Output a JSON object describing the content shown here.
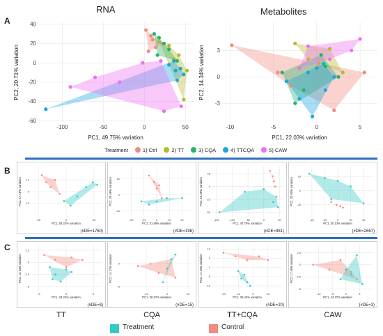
{
  "panel_letters": {
    "a": "A",
    "b": "B",
    "c": "C"
  },
  "titles": {
    "rna": "RNA",
    "metabolites": "Metabolites"
  },
  "legend": {
    "title": "Treatment",
    "items": [
      {
        "label": "1) Ctrl",
        "color": "#f28b82"
      },
      {
        "label": "2) TT",
        "color": "#b5b92b"
      },
      {
        "label": "3) CQA",
        "color": "#27b36b"
      },
      {
        "label": "4) TTCQA",
        "color": "#1ba6e0"
      },
      {
        "label": "5) CAW",
        "color": "#ef6ff1"
      }
    ]
  },
  "bottom_labels": {
    "tt": "TT",
    "cqa": "CQA",
    "ttcqa": "TT+CQA",
    "caw": "CAW"
  },
  "bottom_legend": {
    "treatment": "Treatment",
    "control": "Control",
    "treatment_color": "#34c9c4",
    "control_color": "#f28b82"
  },
  "chart_data": [
    {
      "type": "scatter",
      "title": "RNA",
      "xlabel": "PC1, 49.75% variation",
      "ylabel": "PC2, 20.71% variation",
      "xlim": [
        -130,
        60
      ],
      "ylim": [
        -62,
        42
      ],
      "xticks": [
        -100,
        -50,
        0,
        50
      ],
      "yticks": [
        -60,
        -40,
        -20,
        0,
        20,
        40
      ],
      "series": [
        {
          "name": "1) Ctrl",
          "color": "#f28b82",
          "x": [
            2,
            8,
            14,
            5,
            22,
            10
          ],
          "y": [
            34,
            28,
            16,
            12,
            20,
            24
          ]
        },
        {
          "name": "2) TT",
          "color": "#b5b92b",
          "x": [
            18,
            30,
            42,
            52,
            48,
            36
          ],
          "y": [
            22,
            18,
            8,
            -8,
            -38,
            4
          ]
        },
        {
          "name": "3) CQA",
          "color": "#27b36b",
          "x": [
            12,
            18,
            24,
            30,
            16,
            40
          ],
          "y": [
            30,
            26,
            20,
            14,
            8,
            2
          ]
        },
        {
          "name": "4) TTCQA",
          "color": "#1ba6e0",
          "x": [
            -120,
            30,
            38,
            40,
            44,
            48,
            36
          ],
          "y": [
            -48,
            -2,
            -8,
            -18,
            -6,
            -12,
            2
          ]
        },
        {
          "name": "5) CAW",
          "color": "#ef6ff1",
          "x": [
            -90,
            -60,
            -30,
            -2,
            20,
            24,
            45
          ],
          "y": [
            -25,
            -15,
            -20,
            0,
            2,
            -50,
            -45
          ]
        }
      ]
    },
    {
      "type": "scatter",
      "title": "Metabolites",
      "xlabel": "PC1, 22.03% variation",
      "ylabel": "PC2, 14.34% variation",
      "xlim": [
        -11,
        7
      ],
      "ylim": [
        -5.2,
        6.2
      ],
      "xticks": [
        -10,
        -5,
        0,
        5
      ],
      "yticks": [
        -3,
        0,
        3
      ],
      "series": [
        {
          "name": "1) Ctrl",
          "color": "#f28b82",
          "x": [
            -9.8,
            -4.5,
            0.2,
            2.0,
            5.5,
            -3.0
          ],
          "y": [
            3.6,
            0.5,
            1.5,
            -3.8,
            0.5,
            -1.0
          ]
        },
        {
          "name": "2) TT",
          "color": "#b5b92b",
          "x": [
            -2.5,
            1.5,
            3.0,
            -1.0
          ],
          "y": [
            3.8,
            3.2,
            0.5,
            2.0
          ]
        },
        {
          "name": "3) CQA",
          "color": "#27b36b",
          "x": [
            -4.0,
            -1.5,
            0.5,
            2.5,
            -2.5,
            1.0
          ],
          "y": [
            0.5,
            -1.5,
            2.5,
            0.0,
            -3.0,
            1.2
          ]
        },
        {
          "name": "4) TTCQA",
          "color": "#1ba6e0",
          "x": [
            -3.5,
            -2.0,
            -1.0,
            0.0,
            1.0,
            2.0,
            -0.5,
            0.8
          ],
          "y": [
            -0.5,
            -2.5,
            0.5,
            1.0,
            -1.5,
            0.0,
            -4.5,
            1.5
          ]
        },
        {
          "name": "5) CAW",
          "color": "#ef6ff1",
          "x": [
            -2.0,
            1.5,
            4.0,
            5.0,
            -1.0
          ],
          "y": [
            1.0,
            2.0,
            3.0,
            4.3,
            3.5
          ]
        }
      ]
    },
    {
      "type": "scatter",
      "title": "",
      "xlabel": "PC1, 53.22% variation",
      "ylabel": "PC2, 17.18% variation",
      "xlim": [
        -32,
        32
      ],
      "ylim": [
        -22,
        22
      ],
      "xticks": [
        -25,
        0,
        25
      ],
      "yticks": [
        -10,
        0,
        10
      ],
      "annotation": "(#DE=1760)",
      "series": [
        {
          "color": "#f28b82",
          "x": [
            -22,
            -18,
            -14,
            -10,
            -6
          ],
          "y": [
            14,
            8,
            4,
            10,
            -2
          ]
        },
        {
          "color": "#34c9c4",
          "x": [
            4,
            10,
            18,
            24,
            28,
            -2
          ],
          "y": [
            -12,
            -4,
            4,
            8,
            6,
            -8
          ]
        }
      ]
    },
    {
      "type": "scatter",
      "title": "",
      "xlabel": "PC1, 31.59% variation",
      "ylabel": "PC2, 25.49% variation",
      "xlim": [
        -28,
        28
      ],
      "ylim": [
        -14,
        18
      ],
      "xticks": [
        -20,
        -10,
        0,
        10,
        20
      ],
      "yticks": [
        -10,
        0,
        10
      ],
      "annotation": "(#DE=198)",
      "series": [
        {
          "color": "#f28b82",
          "x": [
            -6,
            -2,
            2,
            4,
            0
          ],
          "y": [
            12,
            8,
            6,
            -2,
            4
          ]
        },
        {
          "color": "#34c9c4",
          "x": [
            -12,
            -6,
            0,
            8,
            20
          ],
          "y": [
            -4,
            -6,
            -4,
            -2,
            -2
          ]
        }
      ]
    },
    {
      "type": "scatter",
      "title": "",
      "xlabel": "PC1, 40.76% variation",
      "ylabel": "PC2, 18.28% variation",
      "xlim": [
        -165,
        60
      ],
      "ylim": [
        -60,
        40
      ],
      "xticks": [
        -150,
        -100,
        -50,
        0,
        50
      ],
      "yticks": [
        -50,
        -25,
        0,
        25
      ],
      "annotation": "(#DE=981)",
      "series": [
        {
          "color": "#f28b82",
          "x": [
            20,
            28,
            32,
            36
          ],
          "y": [
            30,
            20,
            10,
            0
          ]
        },
        {
          "color": "#34c9c4",
          "x": [
            -140,
            -60,
            0,
            30,
            40,
            45
          ],
          "y": [
            -50,
            -10,
            -5,
            -30,
            -20,
            -40
          ]
        }
      ]
    },
    {
      "type": "scatter",
      "title": "",
      "xlabel": "PC1, 30.13% variation",
      "ylabel": "PC2, 20.93% variation",
      "xlim": [
        -55,
        55
      ],
      "ylim": [
        -38,
        35
      ],
      "xticks": [
        -40,
        -20,
        0,
        20,
        40
      ],
      "yticks": [
        -20,
        0,
        20
      ],
      "annotation": "(#DE=2667)",
      "series": [
        {
          "color": "#f28b82",
          "x": [
            -10,
            -2,
            4,
            8
          ],
          "y": [
            -16,
            -20,
            -22,
            -24
          ]
        },
        {
          "color": "#34c9c4",
          "x": [
            -44,
            -20,
            0,
            20,
            40,
            -10
          ],
          "y": [
            24,
            18,
            14,
            6,
            -18,
            -12
          ]
        }
      ]
    },
    {
      "type": "scatter",
      "title": "",
      "xlabel": "PC1, 34.22% variation",
      "ylabel": "PC2, 15.13% variation",
      "xlim": [
        -6.5,
        6.5
      ],
      "ylim": [
        -6,
        3.5
      ],
      "xticks": [
        -5,
        0,
        5
      ],
      "yticks": [
        -5,
        -2.5,
        0,
        2.5
      ],
      "annotation": "(#DE=8)",
      "series": [
        {
          "color": "#f28b82",
          "x": [
            -4,
            -2,
            0,
            1,
            3
          ],
          "y": [
            1.5,
            0.5,
            -1,
            1,
            0.5
          ]
        },
        {
          "color": "#34c9c4",
          "x": [
            -3,
            -2,
            -1,
            0,
            1,
            -2.5
          ],
          "y": [
            -1,
            -2.5,
            -4,
            -1.5,
            -2,
            -3.5
          ]
        }
      ]
    },
    {
      "type": "scatter",
      "title": "",
      "xlabel": "PC1, 38.27% variation",
      "ylabel": "PC2, 14.17% variation",
      "xlim": [
        -22,
        12
      ],
      "ylim": [
        -6,
        4
      ],
      "xticks": [
        -10,
        0,
        10
      ],
      "yticks": [
        -5,
        0
      ],
      "annotation": "(#DE=15)",
      "series": [
        {
          "color": "#f28b82",
          "x": [
            -14,
            -8,
            -4,
            2,
            4
          ],
          "y": [
            -0.5,
            0,
            -2,
            1,
            -3
          ]
        },
        {
          "color": "#34c9c4",
          "x": [
            -2,
            0,
            2,
            4
          ],
          "y": [
            -4,
            -1,
            1,
            2
          ]
        }
      ]
    },
    {
      "type": "scatter",
      "title": "",
      "xlabel": "PC1, 30.44% variation",
      "ylabel": "PC2, 17.43% variation",
      "xlim": [
        -28,
        20
      ],
      "ylim": [
        -13,
        12
      ],
      "xticks": [
        -20,
        -10,
        0,
        10
      ],
      "yticks": [
        -10,
        -5,
        0,
        5,
        10
      ],
      "annotation": "(#DE=20)",
      "series": [
        {
          "color": "#f28b82",
          "x": [
            -20,
            -12,
            -4,
            4,
            10
          ],
          "y": [
            8,
            6,
            4,
            6,
            4
          ]
        },
        {
          "color": "#34c9c4",
          "x": [
            -10,
            -6,
            -4,
            -2,
            -8
          ],
          "y": [
            -2,
            -4,
            -8,
            -10,
            -6
          ]
        }
      ]
    },
    {
      "type": "scatter",
      "title": "",
      "xlabel": "PC1, 24.37% variation",
      "ylabel": "PC2, 17.45% variation",
      "xlim": [
        -16,
        10
      ],
      "ylim": [
        -5.5,
        4
      ],
      "xticks": [
        -10,
        -5,
        0,
        5
      ],
      "yticks": [
        -5,
        -2.5,
        0,
        2.5
      ],
      "annotation": "(#DE=3)",
      "series": [
        {
          "color": "#f28b82",
          "x": [
            -12,
            -6,
            -2,
            2,
            4
          ],
          "y": [
            0,
            -1,
            1,
            -1.5,
            -3
          ]
        },
        {
          "color": "#34c9c4",
          "x": [
            -2,
            0,
            2,
            4,
            6
          ],
          "y": [
            -3,
            -1,
            -2,
            2,
            -4
          ]
        }
      ]
    }
  ]
}
